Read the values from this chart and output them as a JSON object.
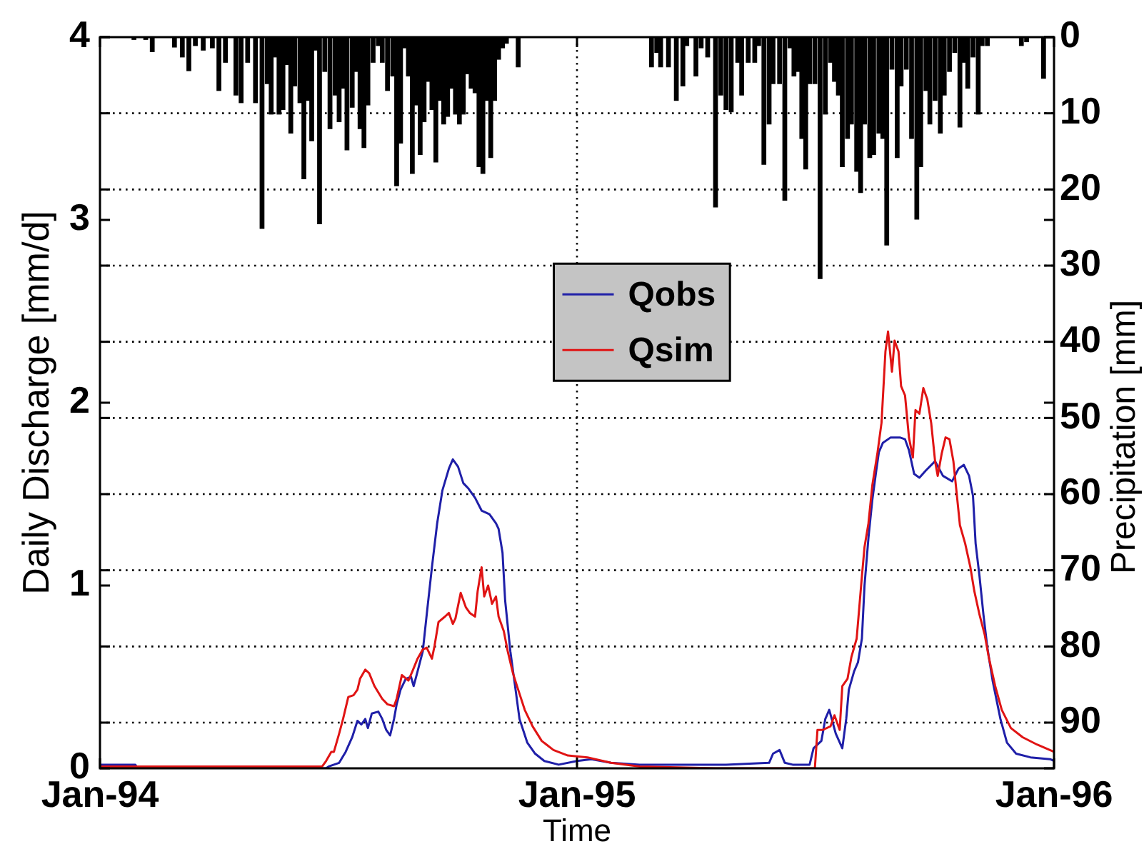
{
  "chart_data": {
    "type": "line",
    "xlabel": "Time",
    "ylabel": "Daily Discharge [mm/d]",
    "y2label": "Precipitation [mm]",
    "xlim": [
      "1994-01-01",
      "1996-01-01"
    ],
    "xticks": [
      {
        "value": "1994-01-01",
        "label": "Jan-94"
      },
      {
        "value": "1995-01-01",
        "label": "Jan-95"
      },
      {
        "value": "1996-01-01",
        "label": "Jan-96"
      }
    ],
    "ylim": [
      0,
      4
    ],
    "yticks": [
      0,
      1,
      2,
      3,
      4
    ],
    "y2lim": [
      96,
      0
    ],
    "y2ticks": [
      0,
      10,
      20,
      30,
      40,
      50,
      60,
      70,
      80,
      90
    ],
    "grid": true,
    "legend": "center",
    "series": [
      {
        "type": "bar",
        "axis": "y2",
        "color": "#000000",
        "x": [
          "1994-01-27",
          "1994-02-05",
          "1994-02-10",
          "1994-02-27",
          "1994-03-05",
          "1994-03-10",
          "1994-03-15",
          "1994-03-21",
          "1994-03-28",
          "1994-04-02",
          "1994-04-07",
          "1994-04-15",
          "1994-04-19",
          "1994-04-24",
          "1994-04-30",
          "1994-05-05",
          "1994-05-09",
          "1994-05-12",
          "1994-05-15",
          "1994-05-18",
          "1994-05-21",
          "1994-05-24",
          "1994-05-27",
          "1994-05-30",
          "1994-06-03",
          "1994-06-06",
          "1994-06-09",
          "1994-06-12",
          "1994-06-15",
          "1994-06-18",
          "1994-06-22",
          "1994-06-26",
          "1994-06-30",
          "1994-07-03",
          "1994-07-06",
          "1994-07-09",
          "1994-07-13",
          "1994-07-16",
          "1994-07-19",
          "1994-07-22",
          "1994-07-25",
          "1994-07-29",
          "1994-08-02",
          "1994-08-05",
          "1994-08-09",
          "1994-08-13",
          "1994-08-16",
          "1994-08-19",
          "1994-08-22",
          "1994-08-25",
          "1994-08-28",
          "1994-08-31",
          "1994-09-03",
          "1994-09-06",
          "1994-09-09",
          "1994-09-12",
          "1994-09-15",
          "1994-09-18",
          "1994-09-21",
          "1994-09-24",
          "1994-09-27",
          "1994-09-30",
          "1994-10-03",
          "1994-10-06",
          "1994-10-09",
          "1994-10-12",
          "1994-10-15",
          "1994-10-18",
          "1994-10-21",
          "1994-10-24",
          "1994-10-27",
          "1994-10-30",
          "1994-11-02",
          "1994-11-05",
          "1994-11-08",
          "1994-11-17",
          "1995-02-27",
          "1995-03-03",
          "1995-03-06",
          "1995-03-12",
          "1995-03-18",
          "1995-03-23",
          "1995-03-26",
          "1995-04-02",
          "1995-04-06",
          "1995-04-11",
          "1995-04-17",
          "1995-04-21",
          "1995-04-25",
          "1995-04-29",
          "1995-05-04",
          "1995-05-07",
          "1995-05-12",
          "1995-05-17",
          "1995-05-20",
          "1995-05-24",
          "1995-05-28",
          "1995-05-31",
          "1995-06-05",
          "1995-06-09",
          "1995-06-13",
          "1995-06-16",
          "1995-06-19",
          "1995-06-22",
          "1995-06-25",
          "1995-06-28",
          "1995-07-02",
          "1995-07-06",
          "1995-07-10",
          "1995-07-14",
          "1995-07-17",
          "1995-07-20",
          "1995-07-23",
          "1995-07-27",
          "1995-07-30",
          "1995-08-03",
          "1995-08-06",
          "1995-08-09",
          "1995-08-13",
          "1995-08-16",
          "1995-08-20",
          "1995-08-23",
          "1995-08-26",
          "1995-08-30",
          "1995-09-03",
          "1995-09-06",
          "1995-09-10",
          "1995-09-14",
          "1995-09-18",
          "1995-09-21",
          "1995-09-25",
          "1995-09-28",
          "1995-10-02",
          "1995-10-06",
          "1995-10-09",
          "1995-10-13",
          "1995-10-17",
          "1995-10-21",
          "1995-10-24",
          "1995-10-27",
          "1995-10-31",
          "1995-11-04",
          "1995-11-07",
          "1995-11-11",
          "1995-12-07",
          "1995-12-11",
          "1995-12-24"
        ],
        "values": [
          0.3,
          0.3,
          1.9,
          1.3,
          2.6,
          4.4,
          1.1,
          1.7,
          1.4,
          7.0,
          3.3,
          7.6,
          8.6,
          3.3,
          8.6,
          25.1,
          6.1,
          10.1,
          2.6,
          10.1,
          9.5,
          3.6,
          12.6,
          6.4,
          8.6,
          18.6,
          8.3,
          13.6,
          1.7,
          24.5,
          4.5,
          12.0,
          7.6,
          11.1,
          6.7,
          14.8,
          9.2,
          4.5,
          12.0,
          14.5,
          8.9,
          3.3,
          1.1,
          3.3,
          7.0,
          5.1,
          19.5,
          13.9,
          1.4,
          5.1,
          17.9,
          8.9,
          15.4,
          11.1,
          5.8,
          9.5,
          16.4,
          8.3,
          11.4,
          10.4,
          6.7,
          10.1,
          11.4,
          10.1,
          4.8,
          6.7,
          7.3,
          17.0,
          17.9,
          8.3,
          15.8,
          8.3,
          2.9,
          1.4,
          0.8,
          3.9,
          3.9,
          2.0,
          3.9,
          3.9,
          8.3,
          6.4,
          1.1,
          5.1,
          1.4,
          2.6,
          22.3,
          7.6,
          9.5,
          9.8,
          3.3,
          7.6,
          3.3,
          3.3,
          1.1,
          16.7,
          11.4,
          6.1,
          6.1,
          21.4,
          1.4,
          5.1,
          4.5,
          13.3,
          17.3,
          6.1,
          6.1,
          31.7,
          10.1,
          3.3,
          5.8,
          7.6,
          17.0,
          13.3,
          11.4,
          17.6,
          20.4,
          11.4,
          15.8,
          15.4,
          12.6,
          13.3,
          27.3,
          4.2,
          15.8,
          6.4,
          4.2,
          13.3,
          23.9,
          17.0,
          7.0,
          11.4,
          8.3,
          12.6,
          7.6,
          4.5,
          2.0,
          11.8,
          3.3,
          6.7,
          2.6,
          10.1,
          1.1,
          1.1,
          1.1,
          0.6,
          5.4
        ]
      },
      {
        "name": "Qobs",
        "color": "#1f1fa8",
        "x": [
          "1994-01-01",
          "1994-01-28",
          "1994-01-30",
          "1994-06-23",
          "1994-06-25",
          "1994-07-03",
          "1994-07-08",
          "1994-07-13",
          "1994-07-17",
          "1994-07-20",
          "1994-07-23",
          "1994-07-25",
          "1994-07-28",
          "1994-08-02",
          "1994-08-05",
          "1994-08-08",
          "1994-08-11",
          "1994-08-14",
          "1994-08-16",
          "1994-08-19",
          "1994-08-23",
          "1994-08-27",
          "1994-08-29",
          "1994-09-01",
          "1994-09-05",
          "1994-09-08",
          "1994-09-12",
          "1994-09-16",
          "1994-09-20",
          "1994-09-25",
          "1994-09-28",
          "1994-10-02",
          "1994-10-06",
          "1994-10-10",
          "1994-10-15",
          "1994-10-20",
          "1994-10-26",
          "1994-10-31",
          "1994-11-02",
          "1994-11-05",
          "1994-11-07",
          "1994-11-11",
          "1994-11-15",
          "1994-11-18",
          "1994-11-24",
          "1994-11-30",
          "1994-12-07",
          "1994-12-18",
          "1995-01-01",
          "1995-01-12",
          "1995-01-27",
          "1995-02-18",
          "1995-03-23",
          "1995-04-25",
          "1995-05-28",
          "1995-05-31",
          "1995-06-05",
          "1995-06-09",
          "1995-06-15",
          "1995-06-28",
          "1995-07-01",
          "1995-07-07",
          "1995-07-10",
          "1995-07-13",
          "1995-07-18",
          "1995-07-23",
          "1995-07-26",
          "1995-07-28",
          "1995-08-01",
          "1995-08-04",
          "1995-08-07",
          "1995-08-09",
          "1995-08-12",
          "1995-08-15",
          "1995-08-18",
          "1995-08-20",
          "1995-08-23",
          "1995-08-29",
          "1995-09-05",
          "1995-09-09",
          "1995-09-12",
          "1995-09-16",
          "1995-09-20",
          "1995-09-25",
          "1995-10-02",
          "1995-10-08",
          "1995-10-15",
          "1995-10-20",
          "1995-10-24",
          "1995-10-28",
          "1995-10-31",
          "1995-11-02",
          "1995-11-05",
          "1995-11-08",
          "1995-11-11",
          "1995-11-15",
          "1995-11-21",
          "1995-11-26",
          "1995-12-03",
          "1995-12-14",
          "1995-12-29",
          "1996-01-01"
        ],
        "values": [
          0.02,
          0.02,
          0.0,
          0.0,
          0.01,
          0.03,
          0.09,
          0.17,
          0.26,
          0.24,
          0.27,
          0.22,
          0.3,
          0.31,
          0.27,
          0.21,
          0.18,
          0.27,
          0.35,
          0.43,
          0.49,
          0.5,
          0.45,
          0.53,
          0.64,
          0.84,
          1.1,
          1.34,
          1.52,
          1.64,
          1.69,
          1.65,
          1.56,
          1.53,
          1.48,
          1.41,
          1.39,
          1.34,
          1.31,
          1.18,
          0.92,
          0.64,
          0.43,
          0.27,
          0.14,
          0.08,
          0.04,
          0.02,
          0.04,
          0.05,
          0.03,
          0.02,
          0.02,
          0.02,
          0.03,
          0.08,
          0.1,
          0.03,
          0.02,
          0.02,
          0.11,
          0.15,
          0.27,
          0.32,
          0.19,
          0.11,
          0.27,
          0.43,
          0.53,
          0.58,
          0.71,
          1.0,
          1.26,
          1.47,
          1.63,
          1.73,
          1.78,
          1.81,
          1.81,
          1.8,
          1.74,
          1.61,
          1.59,
          1.63,
          1.68,
          1.6,
          1.57,
          1.64,
          1.66,
          1.6,
          1.49,
          1.23,
          1.05,
          0.84,
          0.66,
          0.48,
          0.27,
          0.14,
          0.08,
          0.06,
          0.05,
          0.04
        ]
      },
      {
        "name": "Qsim",
        "color": "#e01414",
        "x": [
          "1994-01-01",
          "1994-06-20",
          "1994-06-23",
          "1994-06-27",
          "1994-06-29",
          "1994-07-03",
          "1994-07-06",
          "1994-07-10",
          "1994-07-14",
          "1994-07-17",
          "1994-07-19",
          "1994-07-23",
          "1994-07-26",
          "1994-07-30",
          "1994-08-05",
          "1994-08-09",
          "1994-08-14",
          "1994-08-16",
          "1994-08-20",
          "1994-08-25",
          "1994-08-28",
          "1994-09-01",
          "1994-09-05",
          "1994-09-08",
          "1994-09-12",
          "1994-09-14",
          "1994-09-17",
          "1994-09-22",
          "1994-09-25",
          "1994-09-28",
          "1994-09-30",
          "1994-10-04",
          "1994-10-08",
          "1994-10-11",
          "1994-10-15",
          "1994-10-17",
          "1994-10-20",
          "1994-10-22",
          "1994-10-25",
          "1994-10-28",
          "1994-10-31",
          "1994-11-02",
          "1994-11-06",
          "1994-11-09",
          "1994-11-13",
          "1994-11-17",
          "1994-11-22",
          "1994-11-28",
          "1994-12-05",
          "1994-12-14",
          "1994-12-25",
          "1995-01-09",
          "1995-01-27",
          "1995-02-18",
          "1995-04-17",
          "1995-07-02",
          "1995-07-04",
          "1995-07-08",
          "1995-07-14",
          "1995-07-17",
          "1995-07-21",
          "1995-07-23",
          "1995-07-27",
          "1995-07-30",
          "1995-08-03",
          "1995-08-07",
          "1995-08-09",
          "1995-08-12",
          "1995-08-15",
          "1995-08-19",
          "1995-08-22",
          "1995-08-25",
          "1995-08-27",
          "1995-08-30",
          "1995-09-01",
          "1995-09-04",
          "1995-09-06",
          "1995-09-09",
          "1995-09-12",
          "1995-09-15",
          "1995-09-17",
          "1995-09-20",
          "1995-09-23",
          "1995-09-26",
          "1995-09-29",
          "1995-10-02",
          "1995-10-04",
          "1995-10-07",
          "1995-10-10",
          "1995-10-13",
          "1995-10-16",
          "1995-10-19",
          "1995-10-21",
          "1995-10-25",
          "1995-10-29",
          "1995-11-01",
          "1995-11-05",
          "1995-11-09",
          "1995-11-12",
          "1995-11-17",
          "1995-11-22",
          "1995-11-29",
          "1995-12-08",
          "1995-12-19",
          "1996-01-01"
        ],
        "values": [
          0.01,
          0.01,
          0.04,
          0.09,
          0.09,
          0.19,
          0.27,
          0.39,
          0.4,
          0.43,
          0.49,
          0.54,
          0.52,
          0.45,
          0.38,
          0.35,
          0.34,
          0.38,
          0.51,
          0.48,
          0.53,
          0.6,
          0.65,
          0.66,
          0.6,
          0.67,
          0.8,
          0.83,
          0.85,
          0.79,
          0.82,
          0.96,
          0.88,
          0.85,
          0.83,
          0.97,
          1.1,
          0.94,
          1.0,
          0.9,
          0.94,
          0.83,
          0.75,
          0.64,
          0.52,
          0.43,
          0.32,
          0.23,
          0.15,
          0.1,
          0.07,
          0.06,
          0.03,
          0.01,
          0.0,
          0.0,
          0.21,
          0.21,
          0.23,
          0.29,
          0.21,
          0.45,
          0.49,
          0.61,
          0.71,
          1.05,
          1.21,
          1.34,
          1.55,
          1.73,
          1.89,
          2.28,
          2.39,
          2.17,
          2.34,
          2.28,
          2.09,
          2.04,
          1.81,
          1.7,
          1.96,
          1.94,
          2.08,
          2.02,
          1.89,
          1.68,
          1.6,
          1.72,
          1.81,
          1.8,
          1.68,
          1.47,
          1.33,
          1.23,
          1.1,
          0.97,
          0.84,
          0.73,
          0.61,
          0.45,
          0.32,
          0.22,
          0.17,
          0.13,
          0.09
        ]
      }
    ]
  }
}
